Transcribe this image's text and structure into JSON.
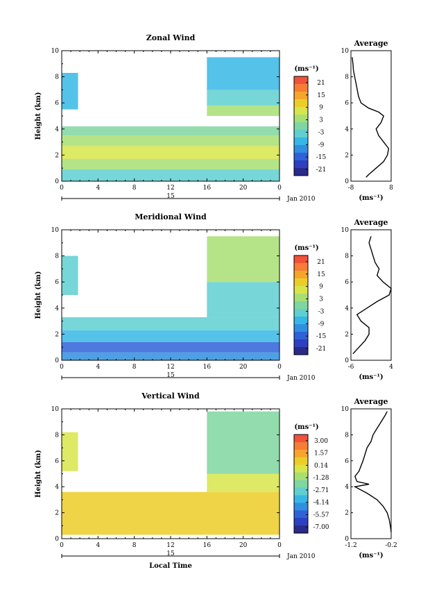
{
  "chart_data": [
    {
      "type": "heatmap",
      "title": "Zonal Wind",
      "ylabel": "Height (km)",
      "ylim": [
        0,
        10
      ],
      "yticks": [
        "0",
        "2",
        "4",
        "6",
        "8",
        "10"
      ],
      "xticks": [
        "0",
        "4",
        "8",
        "12",
        "16",
        "20",
        "0"
      ],
      "date_marker": "15",
      "date_label": "Jan 2010",
      "colorbar": {
        "unit": "(ms⁻¹)",
        "ticks": [
          "21",
          "15",
          "9",
          "3",
          "-3",
          "-9",
          "-15",
          "-21"
        ],
        "colors": [
          "#f0523a",
          "#f77c35",
          "#f6a52b",
          "#eccd28",
          "#d8e54a",
          "#a8df73",
          "#7fd6a0",
          "#5fcfd0",
          "#37b7e6",
          "#2f8fe0",
          "#2f62d8",
          "#2e3fbf",
          "#2a2a8a"
        ]
      },
      "field": {
        "layers": [
          {
            "ymin": 0.0,
            "ymax": 0.9,
            "value": -4
          },
          {
            "ymin": 0.9,
            "ymax": 1.7,
            "value": 3
          },
          {
            "ymin": 1.7,
            "ymax": 2.7,
            "value": 6
          },
          {
            "ymin": 2.7,
            "ymax": 3.5,
            "value": 3
          },
          {
            "ymin": 3.5,
            "ymax": 4.2,
            "value": 1
          },
          {
            "ymin": 5.0,
            "ymax": 5.8,
            "value": 4,
            "xmin": 16,
            "xmax": 24
          },
          {
            "ymin": 5.8,
            "ymax": 7.0,
            "value": -4,
            "xmin": 16,
            "xmax": 24
          },
          {
            "ymin": 7.0,
            "ymax": 9.5,
            "value": -8,
            "xmin": 16,
            "xmax": 24
          },
          {
            "ymin": 5.5,
            "ymax": 8.3,
            "value": -5,
            "xmin": 0,
            "xmax": 1.8
          }
        ]
      },
      "average": {
        "title": "Average",
        "unit": "(ms⁻¹)",
        "xlim": [
          -8,
          8
        ],
        "xticks": [
          "-8",
          "8"
        ],
        "yticks": [
          "0",
          "2",
          "4",
          "6",
          "8",
          "10"
        ],
        "height": [
          0.3,
          0.5,
          1.0,
          1.5,
          2.0,
          2.5,
          3.0,
          3.5,
          4.0,
          4.5,
          5.0,
          5.3,
          5.6,
          6.0,
          6.5,
          7.0,
          7.5,
          8.0,
          8.5,
          9.0,
          9.5
        ],
        "value": [
          -2,
          -1,
          2,
          5,
          6.5,
          7,
          5,
          3,
          2,
          4,
          5,
          3,
          -1,
          -4,
          -5,
          -5.5,
          -6,
          -6.5,
          -7,
          -7.2,
          -7.5
        ]
      }
    },
    {
      "type": "heatmap",
      "title": "Meridional Wind",
      "ylabel": "Height (km)",
      "ylim": [
        0,
        10
      ],
      "yticks": [
        "0",
        "2",
        "4",
        "6",
        "8",
        "10"
      ],
      "xticks": [
        "0",
        "4",
        "8",
        "12",
        "16",
        "20",
        "0"
      ],
      "date_marker": "15",
      "date_label": "Jan 2010",
      "colorbar": {
        "unit": "(ms⁻¹)",
        "ticks": [
          "21",
          "15",
          "9",
          "3",
          "-3",
          "-9",
          "-15",
          "-21"
        ],
        "colors": [
          "#f0523a",
          "#f77c35",
          "#f6a52b",
          "#eccd28",
          "#d8e54a",
          "#a8df73",
          "#7fd6a0",
          "#5fcfd0",
          "#37b7e6",
          "#2f8fe0",
          "#2f62d8",
          "#2e3fbf",
          "#2a2a8a"
        ]
      },
      "field": {
        "layers": [
          {
            "ymin": 0.0,
            "ymax": 0.6,
            "value": -9
          },
          {
            "ymin": 0.6,
            "ymax": 1.4,
            "value": -14
          },
          {
            "ymin": 1.4,
            "ymax": 2.3,
            "value": -7
          },
          {
            "ymin": 2.3,
            "ymax": 3.3,
            "value": -4
          },
          {
            "ymin": 3.3,
            "ymax": 6.0,
            "value": -3,
            "xmin": 16,
            "xmax": 24
          },
          {
            "ymin": 6.0,
            "ymax": 9.5,
            "value": 3,
            "xmin": 16,
            "xmax": 24
          },
          {
            "ymin": 5.0,
            "ymax": 8.0,
            "value": -2,
            "xmin": 0,
            "xmax": 1.8
          }
        ]
      },
      "average": {
        "title": "Average",
        "unit": "(ms⁻¹)",
        "xlim": [
          -6,
          4
        ],
        "xticks": [
          "-6",
          "4"
        ],
        "yticks": [
          "0",
          "2",
          "4",
          "6",
          "8",
          "10"
        ],
        "height": [
          0.5,
          1.0,
          1.5,
          2.0,
          2.5,
          3.0,
          3.5,
          4.0,
          4.5,
          5.0,
          5.5,
          6.0,
          6.5,
          7.0,
          7.5,
          8.0,
          8.5,
          9.0,
          9.5
        ],
        "value": [
          -5.5,
          -4,
          -2.5,
          -1.5,
          -1.5,
          -3.5,
          -4.5,
          -2,
          0.5,
          3.5,
          4,
          2,
          0.5,
          1,
          0,
          -0.5,
          -1,
          -1.5,
          -1
        ]
      }
    },
    {
      "type": "heatmap",
      "title": "Vertical Wind",
      "ylabel": "Height (km)",
      "xlabel": "Local Time",
      "ylim": [
        0,
        10
      ],
      "yticks": [
        "0",
        "2",
        "4",
        "6",
        "8",
        "10"
      ],
      "xticks": [
        "0",
        "4",
        "8",
        "12",
        "16",
        "20",
        "0"
      ],
      "date_marker": "15",
      "date_label": "Jan 2010",
      "colorbar": {
        "unit": "(ms⁻¹)",
        "ticks": [
          "3.00",
          "1.57",
          "0.14",
          "-1.28",
          "-2.71",
          "-4.14",
          "-5.57",
          "-7.00"
        ],
        "colors": [
          "#f0523a",
          "#f77c35",
          "#f6a52b",
          "#eccd28",
          "#d8e54a",
          "#a8df73",
          "#7fd6a0",
          "#5fcfd0",
          "#37b7e6",
          "#2f8fe0",
          "#2f62d8",
          "#2e3fbf",
          "#2a2a8a"
        ]
      },
      "field": {
        "layers": [
          {
            "ymin": 0.3,
            "ymax": 3.6,
            "value": 0.4
          },
          {
            "ymin": 3.6,
            "ymax": 5.0,
            "value": -0.6,
            "xmin": 16,
            "xmax": 24
          },
          {
            "ymin": 5.0,
            "ymax": 9.8,
            "value": -2.0,
            "xmin": 16,
            "xmax": 24
          },
          {
            "ymin": 5.2,
            "ymax": 8.2,
            "value": -0.8,
            "xmin": 0,
            "xmax": 1.8
          }
        ]
      },
      "average": {
        "title": "Average",
        "unit": "(ms⁻¹)",
        "xlim": [
          -1.2,
          -0.2
        ],
        "xticks": [
          "-1.2",
          "-0.2"
        ],
        "yticks": [
          "0",
          "2",
          "4",
          "6",
          "8",
          "10"
        ],
        "height": [
          0.5,
          1.0,
          1.5,
          2.0,
          2.5,
          3.0,
          3.5,
          4.0,
          4.2,
          4.4,
          4.8,
          5.2,
          5.6,
          6.0,
          6.5,
          7.0,
          7.5,
          8.0,
          8.5,
          9.0,
          9.5,
          9.8
        ],
        "value": [
          -0.2,
          -0.22,
          -0.25,
          -0.3,
          -0.4,
          -0.55,
          -0.8,
          -1.1,
          -0.75,
          -1.05,
          -1.1,
          -1.0,
          -0.95,
          -0.9,
          -0.85,
          -0.8,
          -0.7,
          -0.65,
          -0.55,
          -0.45,
          -0.35,
          -0.3
        ]
      }
    }
  ]
}
